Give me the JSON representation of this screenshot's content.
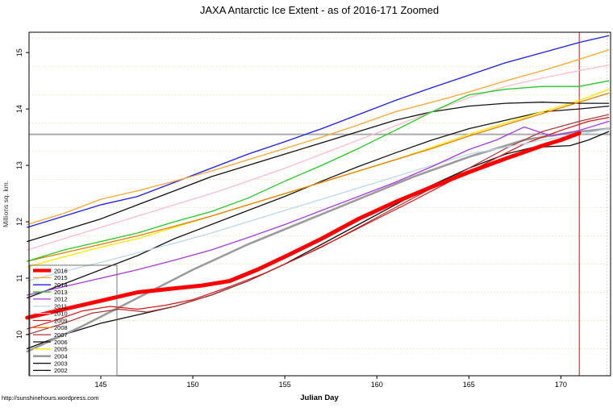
{
  "title": "JAXA Antarctic Ice Extent - as of 2016-171 Zoomed",
  "footer": "http://sunshinehours.wordpress.com",
  "chart_data": {
    "type": "line",
    "title": "JAXA Antarctic Ice Extent - as of 2016-171 Zoomed",
    "xlabel": "Julian Day",
    "ylabel": "Millions sq. km.",
    "xlim": [
      141.1,
      172.7
    ],
    "ylim": [
      9.27,
      15.36
    ],
    "x_ticks": [
      145,
      150,
      155,
      160,
      165,
      170
    ],
    "y_ticks": [
      10,
      11,
      12,
      13,
      14,
      15
    ],
    "grid": {
      "y_start": 9.75,
      "y_step": 0.5,
      "y_end": 15.25,
      "color": "#e9e1ba",
      "x_grid": [
        172.5
      ],
      "x_grid_color": "#cfcabc",
      "style": "dotted"
    },
    "crosshair": {
      "x_value": 171,
      "x_color": "#b34747",
      "y_value": 13.55,
      "y_color": "#aaaaaa",
      "note": "vertical line marks day 171, horizontal gray line marks current 2016 extent"
    },
    "legend": {
      "position": "bottom-left",
      "order": [
        "2016",
        "2015",
        "2014",
        "2013",
        "2012",
        "2011",
        "2010",
        "2009",
        "2008",
        "2007",
        "2006",
        "2005",
        "2004",
        "2003",
        "2002"
      ]
    },
    "series": [
      {
        "name": "2016",
        "color": "#ff0000",
        "width": 5,
        "x": [
          141,
          143,
          145,
          147,
          149,
          150.5,
          152,
          153.5,
          155,
          157,
          159,
          161,
          163,
          165,
          167,
          169,
          170,
          171
        ],
        "y": [
          10.3,
          10.45,
          10.6,
          10.75,
          10.82,
          10.87,
          10.95,
          11.15,
          11.38,
          11.7,
          12.05,
          12.35,
          12.62,
          12.88,
          13.12,
          13.35,
          13.45,
          13.57
        ]
      },
      {
        "name": "2015",
        "color": "#ffa52c",
        "width": 1.3,
        "x": [
          141,
          143,
          145,
          147,
          149,
          151,
          153,
          155,
          157,
          159,
          161,
          163,
          165,
          167,
          169,
          171,
          172.6
        ],
        "y": [
          11.95,
          12.15,
          12.4,
          12.55,
          12.72,
          12.9,
          13.1,
          13.3,
          13.5,
          13.72,
          13.95,
          14.12,
          14.3,
          14.5,
          14.68,
          14.88,
          15.05
        ]
      },
      {
        "name": "2014",
        "color": "#1a1aff",
        "width": 1.3,
        "x": [
          141,
          143,
          145,
          147,
          149,
          151,
          153,
          155,
          157,
          159,
          161,
          163,
          165,
          167,
          169,
          171,
          172.6
        ],
        "y": [
          11.9,
          12.1,
          12.3,
          12.45,
          12.7,
          12.95,
          13.2,
          13.42,
          13.65,
          13.9,
          14.15,
          14.38,
          14.6,
          14.82,
          15.0,
          15.18,
          15.3
        ]
      },
      {
        "name": "2013",
        "color": "#22cc22",
        "width": 1.3,
        "x": [
          141,
          143,
          145,
          147,
          149,
          151,
          153,
          155,
          157,
          159,
          161,
          163,
          165,
          167,
          169,
          171,
          172.6
        ],
        "y": [
          11.3,
          11.5,
          11.65,
          11.8,
          12.0,
          12.18,
          12.42,
          12.72,
          13.0,
          13.3,
          13.62,
          13.95,
          14.25,
          14.35,
          14.4,
          14.4,
          14.5
        ]
      },
      {
        "name": "2012",
        "color": "#a838e8",
        "width": 1.3,
        "x": [
          141,
          143,
          145,
          147,
          149,
          151,
          153,
          155,
          157,
          159,
          161,
          163,
          165,
          166.5,
          168,
          169.5,
          171,
          172.6
        ],
        "y": [
          10.7,
          10.85,
          11.0,
          11.15,
          11.32,
          11.5,
          11.72,
          11.95,
          12.2,
          12.45,
          12.7,
          12.98,
          13.28,
          13.45,
          13.68,
          13.52,
          13.62,
          13.78
        ]
      },
      {
        "name": "2011",
        "color": "#b9d9ea",
        "width": 1.3,
        "x": [
          141,
          143,
          145,
          147,
          149,
          151,
          153,
          155,
          157,
          159,
          161,
          163,
          165,
          167,
          169,
          171,
          172.6
        ],
        "y": [
          10.95,
          11.12,
          11.28,
          11.45,
          11.62,
          11.8,
          12.0,
          12.2,
          12.4,
          12.6,
          12.8,
          13.0,
          13.2,
          13.32,
          13.45,
          13.55,
          13.65
        ]
      },
      {
        "name": "2010",
        "color": "#ffbccb",
        "width": 1.3,
        "x": [
          141,
          143,
          145,
          147,
          149,
          151,
          153,
          155,
          157,
          159,
          161,
          163,
          165,
          167,
          169,
          171,
          172.6
        ],
        "y": [
          11.5,
          11.7,
          11.9,
          12.1,
          12.3,
          12.5,
          12.72,
          12.95,
          13.2,
          13.45,
          13.7,
          13.95,
          14.2,
          14.4,
          14.55,
          14.68,
          14.78
        ]
      },
      {
        "name": "2009",
        "color": "#dd1111",
        "width": 1.2,
        "x": [
          141,
          142.5,
          144,
          145.5,
          147,
          148.5,
          150,
          152,
          154,
          156,
          158,
          160,
          162,
          164,
          166,
          168,
          170,
          171.5,
          172.6
        ],
        "y": [
          10.1,
          10.25,
          10.42,
          10.5,
          10.45,
          10.52,
          10.62,
          10.85,
          11.1,
          11.4,
          11.72,
          12.05,
          12.38,
          12.72,
          13.05,
          13.38,
          13.62,
          13.78,
          13.85
        ]
      },
      {
        "name": "2008",
        "color": "#e87d00",
        "width": 1.3,
        "x": [
          141,
          143,
          145,
          147,
          149,
          151,
          153,
          155,
          157,
          159,
          161,
          163,
          165,
          167,
          169,
          171,
          172.6
        ],
        "y": [
          11.3,
          11.45,
          11.6,
          11.75,
          11.92,
          12.1,
          12.3,
          12.5,
          12.7,
          12.9,
          13.1,
          13.3,
          13.52,
          13.72,
          13.92,
          14.12,
          14.28
        ]
      },
      {
        "name": "2007",
        "color": "#a83232",
        "width": 1.2,
        "x": [
          141,
          143,
          144.5,
          146,
          147.5,
          149,
          151,
          153,
          155,
          157,
          159,
          161,
          163,
          165,
          167,
          169,
          171,
          172.6
        ],
        "y": [
          10.0,
          10.2,
          10.38,
          10.45,
          10.4,
          10.5,
          10.7,
          10.95,
          11.25,
          11.55,
          11.9,
          12.25,
          12.6,
          12.95,
          13.3,
          13.6,
          13.78,
          13.9
        ]
      },
      {
        "name": "2006",
        "color": "#111111",
        "width": 1.3,
        "x": [
          141,
          143,
          145,
          147,
          149,
          151,
          153,
          155,
          157,
          159,
          161,
          163,
          165,
          167,
          169,
          171,
          172.6
        ],
        "y": [
          11.65,
          11.85,
          12.05,
          12.3,
          12.55,
          12.8,
          13.0,
          13.2,
          13.4,
          13.6,
          13.8,
          13.95,
          14.05,
          14.1,
          14.12,
          14.1,
          14.1
        ]
      },
      {
        "name": "2005",
        "color": "#ffe800",
        "width": 1.4,
        "x": [
          141,
          143,
          145,
          147,
          149,
          151,
          153,
          155,
          157,
          159,
          161,
          163,
          165,
          167,
          169,
          171,
          172.6
        ],
        "y": [
          11.2,
          11.38,
          11.55,
          11.7,
          11.9,
          12.1,
          12.3,
          12.5,
          12.7,
          12.9,
          13.1,
          13.32,
          13.55,
          13.75,
          13.95,
          14.15,
          14.35
        ]
      },
      {
        "name": "2004",
        "color": "#9c9c9c",
        "width": 2.6,
        "x": [
          141,
          144,
          147,
          150,
          153,
          156,
          159,
          162,
          165,
          168,
          170.5,
          172.6
        ],
        "y": [
          9.7,
          10.15,
          10.65,
          11.15,
          11.6,
          12.0,
          12.4,
          12.8,
          13.15,
          13.45,
          13.58,
          13.65
        ]
      },
      {
        "name": "2003",
        "color": "#151515",
        "width": 1.3,
        "x": [
          141,
          143,
          145,
          147,
          149,
          151,
          153,
          155,
          157,
          159,
          161,
          163,
          165,
          167,
          169,
          171,
          172.6
        ],
        "y": [
          10.65,
          10.9,
          11.15,
          11.4,
          11.7,
          11.95,
          12.2,
          12.45,
          12.72,
          12.98,
          13.22,
          13.45,
          13.65,
          13.8,
          13.95,
          14.0,
          14.05
        ]
      },
      {
        "name": "2002",
        "color": "#101010",
        "width": 1.3,
        "x": [
          141,
          143,
          145,
          147,
          149,
          151,
          153,
          155,
          157,
          159,
          161,
          163,
          165,
          167,
          168.5,
          170.5,
          171.5,
          172.6
        ],
        "y": [
          9.75,
          10.0,
          10.2,
          10.35,
          10.5,
          10.7,
          10.95,
          11.25,
          11.6,
          11.95,
          12.3,
          12.65,
          12.95,
          13.2,
          13.32,
          13.35,
          13.45,
          13.6
        ]
      }
    ]
  }
}
